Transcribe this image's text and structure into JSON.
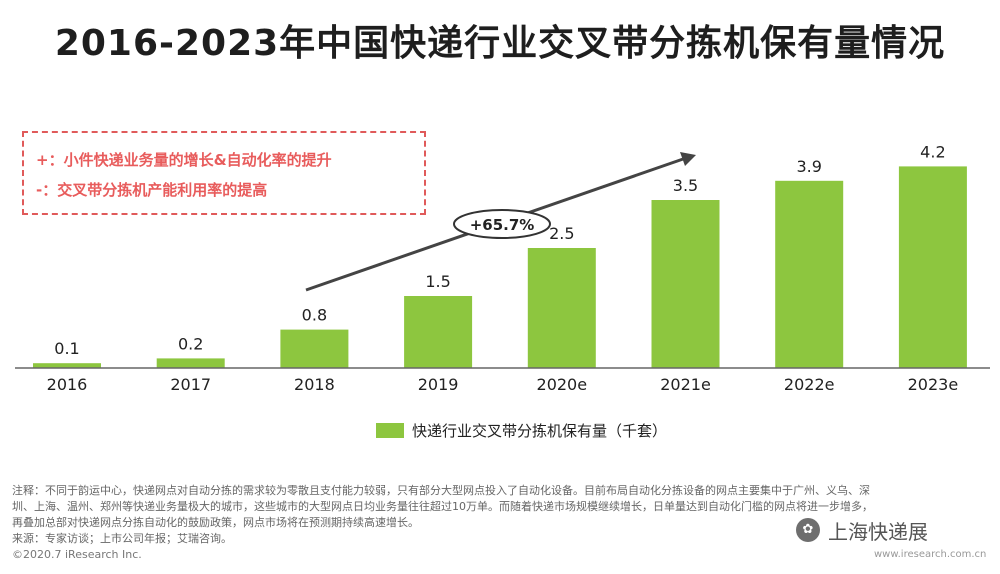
{
  "title": "2016-2023年中国快递行业交叉带分拣机保有量情况",
  "notes": {
    "plus": "+：小件快递业务量的增长&自动化率的提升",
    "minus": "-：交叉带分拣机产能利用率的提高"
  },
  "growth_label": "+65.7%",
  "chart_data": {
    "type": "bar",
    "title": "2016-2023年中国快递行业交叉带分拣机保有量情况",
    "categories": [
      "2016",
      "2017",
      "2018",
      "2019",
      "2020e",
      "2021e",
      "2022e",
      "2023e"
    ],
    "series": [
      {
        "name": "快递行业交叉带分拣机保有量（千套）",
        "values": [
          0.1,
          0.2,
          0.8,
          1.5,
          2.5,
          3.5,
          3.9,
          4.2
        ]
      }
    ],
    "ylim": [
      0,
      4.5
    ],
    "grid": false,
    "legend": "bottom",
    "bar_color": "#8dc63f",
    "annotations": [
      "+65.7%"
    ]
  },
  "legend_label": "快递行业交叉带分拣机保有量（千套）",
  "footnotes": [
    "注释：不同于韵运中心，快递网点对自动分拣的需求较为零散且支付能力较弱，只有部分大型网点投入了自动化设备。目前布局自动化分拣设备的网点主要集中于广州、义乌、深",
    "圳、上海、温州、郑州等快递业务量极大的城市，这些城市的大型网点日均业务量往往超过10万单。而随着快递市场规模继续增长，日单量达到自动化门槛的网点将进一步增多，",
    "再叠加总部对快递网点分拣自动化的鼓励政策，网点市场将在预测期持续高速增长。",
    "来源：专家访谈；上市公司年报；艾瑞咨询。"
  ],
  "copyright": "©2020.7 iResearch Inc.",
  "website": "www.iresearch.com.cn",
  "watermark": "上海快递展"
}
